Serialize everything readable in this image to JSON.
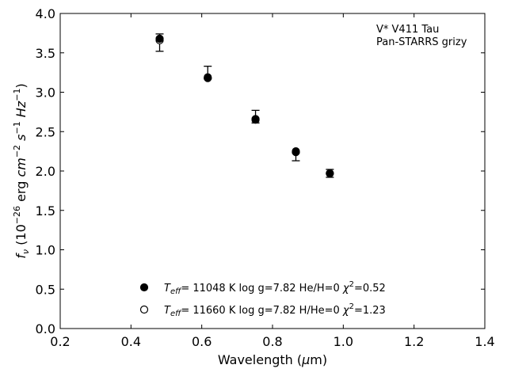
{
  "chart_data": {
    "type": "scatter",
    "xlabel": "Wavelength (μm)",
    "ylabel": "f_ν (10^-26 erg cm^-2 s^-1 Hz^-1)",
    "xlim": [
      0.2,
      1.4
    ],
    "ylim": [
      0.0,
      4.0
    ],
    "xticks": [
      "0.2",
      "0.4",
      "0.6",
      "0.8",
      "1.0",
      "1.2",
      "1.4"
    ],
    "yticks": [
      "0.0",
      "0.5",
      "1.0",
      "1.5",
      "2.0",
      "2.5",
      "3.0",
      "3.5",
      "4.0"
    ],
    "grid": false,
    "annotation": [
      "V* V411 Tau",
      "Pan-STARRS grizy"
    ],
    "observed": {
      "x": [
        0.481,
        0.617,
        0.752,
        0.866,
        0.962
      ],
      "y": [
        3.63,
        3.24,
        2.69,
        2.18,
        1.97
      ],
      "yerr_low": [
        0.11,
        0.07,
        0.08,
        0.05,
        0.05
      ],
      "yerr_high": [
        0.11,
        0.09,
        0.08,
        0.05,
        0.05
      ]
    },
    "series": [
      {
        "marker": "filled",
        "legend": "T_eff= 11048 K  log g=7.82  He/H=0  χ²=0.52",
        "x": [
          0.481,
          0.617,
          0.752,
          0.866,
          0.962
        ],
        "y": [
          3.68,
          3.19,
          2.66,
          2.25,
          1.97
        ]
      },
      {
        "marker": "open",
        "legend": "T_eff= 11660 K  log g=7.82  H/He=0  χ²=1.23",
        "x": [
          0.481,
          0.617,
          0.752,
          0.866,
          0.962
        ],
        "y": [
          3.66,
          3.18,
          2.65,
          2.24,
          1.97
        ]
      }
    ]
  }
}
